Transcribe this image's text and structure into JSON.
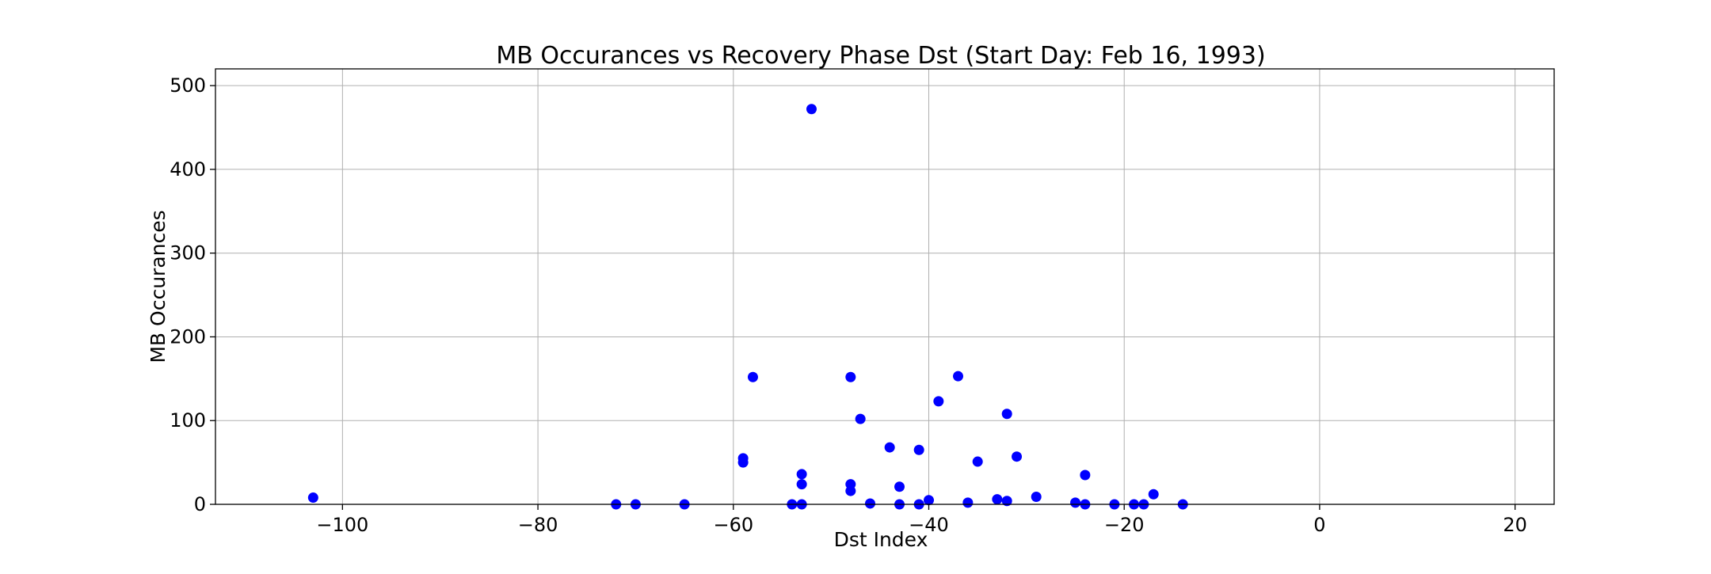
{
  "chart_data": {
    "type": "scatter",
    "title": "MB Occurances vs Recovery Phase Dst (Start Day: Feb 16, 1993)",
    "xlabel": "Dst Index",
    "ylabel": "MB Occurances",
    "xlim": [
      -113,
      24
    ],
    "ylim": [
      0,
      520
    ],
    "x_ticks": [
      -100,
      -80,
      -60,
      -40,
      -20,
      0,
      20
    ],
    "x_tick_labels": [
      "−100",
      "−80",
      "−60",
      "−40",
      "−20",
      "0",
      "20"
    ],
    "y_ticks": [
      0,
      100,
      200,
      300,
      400,
      500
    ],
    "y_tick_labels": [
      "0",
      "100",
      "200",
      "300",
      "400",
      "500"
    ],
    "grid": true,
    "marker_color": "#0000ff",
    "series": [
      {
        "x": [
          -103,
          -72,
          -70,
          -65,
          -59,
          -59,
          -58,
          -54,
          -53,
          -53,
          -53,
          -52,
          -48,
          -48,
          -48,
          -47,
          -46,
          -44,
          -43,
          -43,
          -41,
          -41,
          -40,
          -39,
          -37,
          -36,
          -35,
          -33,
          -32,
          -32,
          -31,
          -29,
          -25,
          -24,
          -24,
          -21,
          -19,
          -18,
          -17,
          -14
        ],
        "y": [
          8,
          0,
          0,
          0,
          55,
          50,
          152,
          0,
          0,
          36,
          24,
          472,
          152,
          24,
          16,
          102,
          1,
          68,
          21,
          0,
          65,
          0,
          5,
          123,
          153,
          2,
          51,
          6,
          4,
          108,
          57,
          9,
          2,
          35,
          0,
          0,
          0,
          0,
          12,
          0
        ]
      }
    ]
  }
}
